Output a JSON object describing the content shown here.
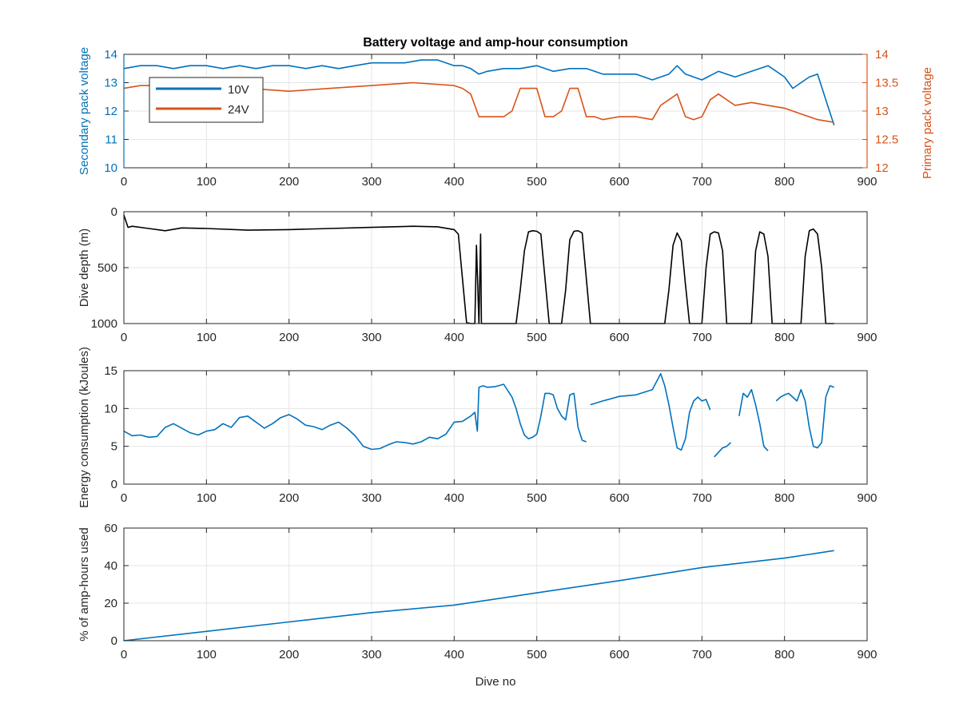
{
  "figure": {
    "title": "Battery voltage and amp-hour consumption",
    "colors": {
      "series_blue": "#0072BD",
      "series_orange": "#D95319",
      "depth_line": "#000000",
      "grid": "#e6e6e6"
    }
  },
  "chart_data": [
    {
      "type": "line",
      "title": "Battery voltage and amp-hour consumption",
      "xlabel": "",
      "ylabel": "Secondary pack voltage",
      "ylabel_right": "Primary pack voltage",
      "xlim": [
        0,
        900
      ],
      "ylim": [
        10,
        14
      ],
      "ylim_right": [
        12,
        14
      ],
      "xticks": [
        0,
        100,
        200,
        300,
        400,
        500,
        600,
        700,
        800,
        900
      ],
      "yticks": [
        10,
        11,
        12,
        13,
        14
      ],
      "yticks_right": [
        12,
        12.5,
        13,
        13.5,
        14
      ],
      "grid": true,
      "legend_position": "top-left",
      "series": [
        {
          "name": "10V",
          "axis": "left",
          "color": "#0072BD",
          "x": [
            0,
            20,
            40,
            60,
            80,
            100,
            120,
            140,
            160,
            180,
            200,
            220,
            240,
            260,
            280,
            300,
            320,
            340,
            360,
            380,
            400,
            410,
            420,
            430,
            440,
            460,
            480,
            500,
            520,
            540,
            560,
            580,
            600,
            620,
            640,
            660,
            670,
            680,
            700,
            720,
            740,
            760,
            780,
            800,
            810,
            820,
            830,
            840,
            850,
            860
          ],
          "y": [
            13.5,
            13.6,
            13.6,
            13.5,
            13.6,
            13.6,
            13.5,
            13.6,
            13.5,
            13.6,
            13.6,
            13.5,
            13.6,
            13.5,
            13.6,
            13.7,
            13.7,
            13.7,
            13.8,
            13.8,
            13.6,
            13.6,
            13.5,
            13.3,
            13.4,
            13.5,
            13.5,
            13.6,
            13.4,
            13.5,
            13.5,
            13.3,
            13.3,
            13.3,
            13.1,
            13.3,
            13.6,
            13.3,
            13.1,
            13.4,
            13.2,
            13.4,
            13.6,
            13.2,
            12.8,
            13.0,
            13.2,
            13.3,
            12.4,
            11.5
          ]
        },
        {
          "name": "24V",
          "axis": "right",
          "color": "#D95319",
          "x": [
            0,
            20,
            40,
            60,
            80,
            100,
            150,
            200,
            250,
            300,
            350,
            400,
            410,
            420,
            430,
            440,
            460,
            470,
            480,
            500,
            510,
            520,
            530,
            540,
            550,
            560,
            570,
            580,
            600,
            620,
            640,
            650,
            660,
            670,
            680,
            690,
            700,
            710,
            720,
            740,
            760,
            780,
            800,
            820,
            840,
            860
          ],
          "y": [
            13.4,
            13.45,
            13.45,
            13.4,
            13.4,
            13.4,
            13.4,
            13.35,
            13.4,
            13.45,
            13.5,
            13.45,
            13.4,
            13.3,
            12.9,
            12.9,
            12.9,
            13.0,
            13.4,
            13.4,
            12.9,
            12.9,
            13.0,
            13.4,
            13.4,
            12.9,
            12.9,
            12.85,
            12.9,
            12.9,
            12.85,
            13.1,
            13.2,
            13.3,
            12.9,
            12.85,
            12.9,
            13.2,
            13.3,
            13.1,
            13.15,
            13.1,
            13.05,
            12.95,
            12.85,
            12.8
          ]
        }
      ]
    },
    {
      "type": "line",
      "xlabel": "",
      "ylabel": "Dive depth (m)",
      "xlim": [
        0,
        900
      ],
      "ylim": [
        0,
        1000
      ],
      "y_reversed": true,
      "xticks": [
        0,
        100,
        200,
        300,
        400,
        500,
        600,
        700,
        800,
        900
      ],
      "yticks": [
        0,
        500,
        1000
      ],
      "grid": true,
      "series": [
        {
          "color": "#000000",
          "x": [
            0,
            5,
            10,
            30,
            50,
            70,
            100,
            150,
            200,
            250,
            300,
            350,
            380,
            400,
            405,
            410,
            415,
            420,
            425,
            427,
            430,
            432,
            433,
            435,
            440,
            460,
            475,
            480,
            485,
            490,
            495,
            500,
            505,
            510,
            515,
            520,
            530,
            535,
            540,
            545,
            550,
            555,
            560,
            565,
            570,
            600,
            630,
            655,
            660,
            665,
            670,
            675,
            680,
            685,
            690,
            700,
            705,
            710,
            715,
            720,
            725,
            730,
            735,
            740,
            760,
            765,
            770,
            775,
            780,
            785,
            790,
            800,
            820,
            825,
            830,
            835,
            840,
            845,
            850,
            860
          ],
          "y": [
            30,
            140,
            130,
            150,
            170,
            145,
            150,
            165,
            160,
            150,
            140,
            130,
            135,
            160,
            200,
            600,
            990,
            1000,
            1000,
            300,
            1000,
            200,
            1000,
            1000,
            1000,
            1000,
            1000,
            700,
            350,
            180,
            170,
            175,
            200,
            600,
            1000,
            1000,
            1000,
            700,
            250,
            175,
            170,
            190,
            600,
            1000,
            1000,
            1000,
            1000,
            1000,
            700,
            300,
            190,
            260,
            650,
            1000,
            1000,
            1000,
            500,
            200,
            180,
            190,
            350,
            1000,
            1000,
            1000,
            1000,
            350,
            180,
            200,
            400,
            1000,
            1000,
            1000,
            1000,
            400,
            170,
            155,
            200,
            500,
            1000,
            1000
          ]
        }
      ]
    },
    {
      "type": "line",
      "xlabel": "",
      "ylabel": "Energy consumption (kJoules)",
      "xlim": [
        0,
        900
      ],
      "ylim": [
        0,
        15
      ],
      "xticks": [
        0,
        100,
        200,
        300,
        400,
        500,
        600,
        700,
        800,
        900
      ],
      "yticks": [
        0,
        5,
        10,
        15
      ],
      "grid": true,
      "series": [
        {
          "color": "#0072BD",
          "segments": [
            {
              "x": [
                0,
                10,
                20,
                30,
                40,
                50,
                60,
                70,
                80,
                90,
                100,
                110,
                120,
                130,
                140,
                150,
                160,
                170,
                180,
                190,
                200,
                210,
                220,
                230,
                240,
                250,
                260,
                270,
                280,
                290,
                300,
                310,
                320,
                330,
                340,
                350,
                360,
                370,
                380,
                390,
                400,
                410,
                420,
                425,
                428,
                430,
                435,
                440,
                450,
                460,
                470,
                475,
                480,
                485,
                490,
                495,
                500,
                505,
                510,
                515,
                520,
                525,
                530,
                535,
                540,
                545,
                550,
                555,
                560
              ],
              "y": [
                7.0,
                6.4,
                6.5,
                6.2,
                6.3,
                7.5,
                8.0,
                7.4,
                6.8,
                6.5,
                7.0,
                7.2,
                8.0,
                7.5,
                8.8,
                9.0,
                8.2,
                7.4,
                8.0,
                8.8,
                9.2,
                8.6,
                7.8,
                7.6,
                7.2,
                7.8,
                8.2,
                7.4,
                6.4,
                5.0,
                4.6,
                4.7,
                5.2,
                5.6,
                5.5,
                5.3,
                5.6,
                6.2,
                6.0,
                6.6,
                8.2,
                8.3,
                9.0,
                9.5,
                7.0,
                12.8,
                13.0,
                12.8,
                12.9,
                13.2,
                11.5,
                10.0,
                8.0,
                6.5,
                6.0,
                6.2,
                6.6,
                9.0,
                12.0,
                12.0,
                11.8,
                10.0,
                9.0,
                8.5,
                11.8,
                12.0,
                7.5,
                5.8,
                5.6
              ]
            },
            {
              "x": [
                565,
                580,
                600,
                620,
                640,
                650,
                655,
                660,
                665,
                670,
                675,
                680,
                685,
                690,
                695,
                700,
                705,
                710
              ],
              "y": [
                10.5,
                11.0,
                11.6,
                11.8,
                12.5,
                14.6,
                13.0,
                10.5,
                7.5,
                4.8,
                4.5,
                6.0,
                9.5,
                11.0,
                11.5,
                11.0,
                11.2,
                9.8
              ]
            },
            {
              "x": [
                715,
                720,
                725,
                730,
                735
              ],
              "y": [
                3.6,
                4.2,
                4.8,
                5.0,
                5.5
              ]
            },
            {
              "x": [
                745,
                750,
                755,
                760,
                765,
                770,
                775,
                780
              ],
              "y": [
                9.0,
                12.0,
                11.5,
                12.5,
                10.5,
                8.0,
                5.0,
                4.4
              ]
            },
            {
              "x": [
                790,
                795,
                800,
                805,
                810,
                815,
                820,
                825,
                830,
                835,
                840,
                845,
                850,
                855,
                860
              ],
              "y": [
                11.0,
                11.5,
                11.8,
                12.0,
                11.5,
                11.0,
                12.5,
                11.0,
                7.5,
                5.0,
                4.8,
                5.5,
                11.5,
                13.0,
                12.8
              ]
            }
          ]
        }
      ]
    },
    {
      "type": "line",
      "xlabel": "Dive no",
      "ylabel": "% of amp-hours used",
      "xlim": [
        0,
        900
      ],
      "ylim": [
        0,
        60
      ],
      "xticks": [
        0,
        100,
        200,
        300,
        400,
        500,
        600,
        700,
        800,
        900
      ],
      "yticks": [
        0,
        20,
        40,
        60
      ],
      "grid": true,
      "series": [
        {
          "color": "#0072BD",
          "x": [
            0,
            100,
            200,
            300,
            400,
            500,
            600,
            700,
            800,
            860
          ],
          "y": [
            0,
            5,
            10,
            15,
            19,
            25.5,
            32,
            39,
            44,
            48
          ]
        }
      ]
    }
  ]
}
